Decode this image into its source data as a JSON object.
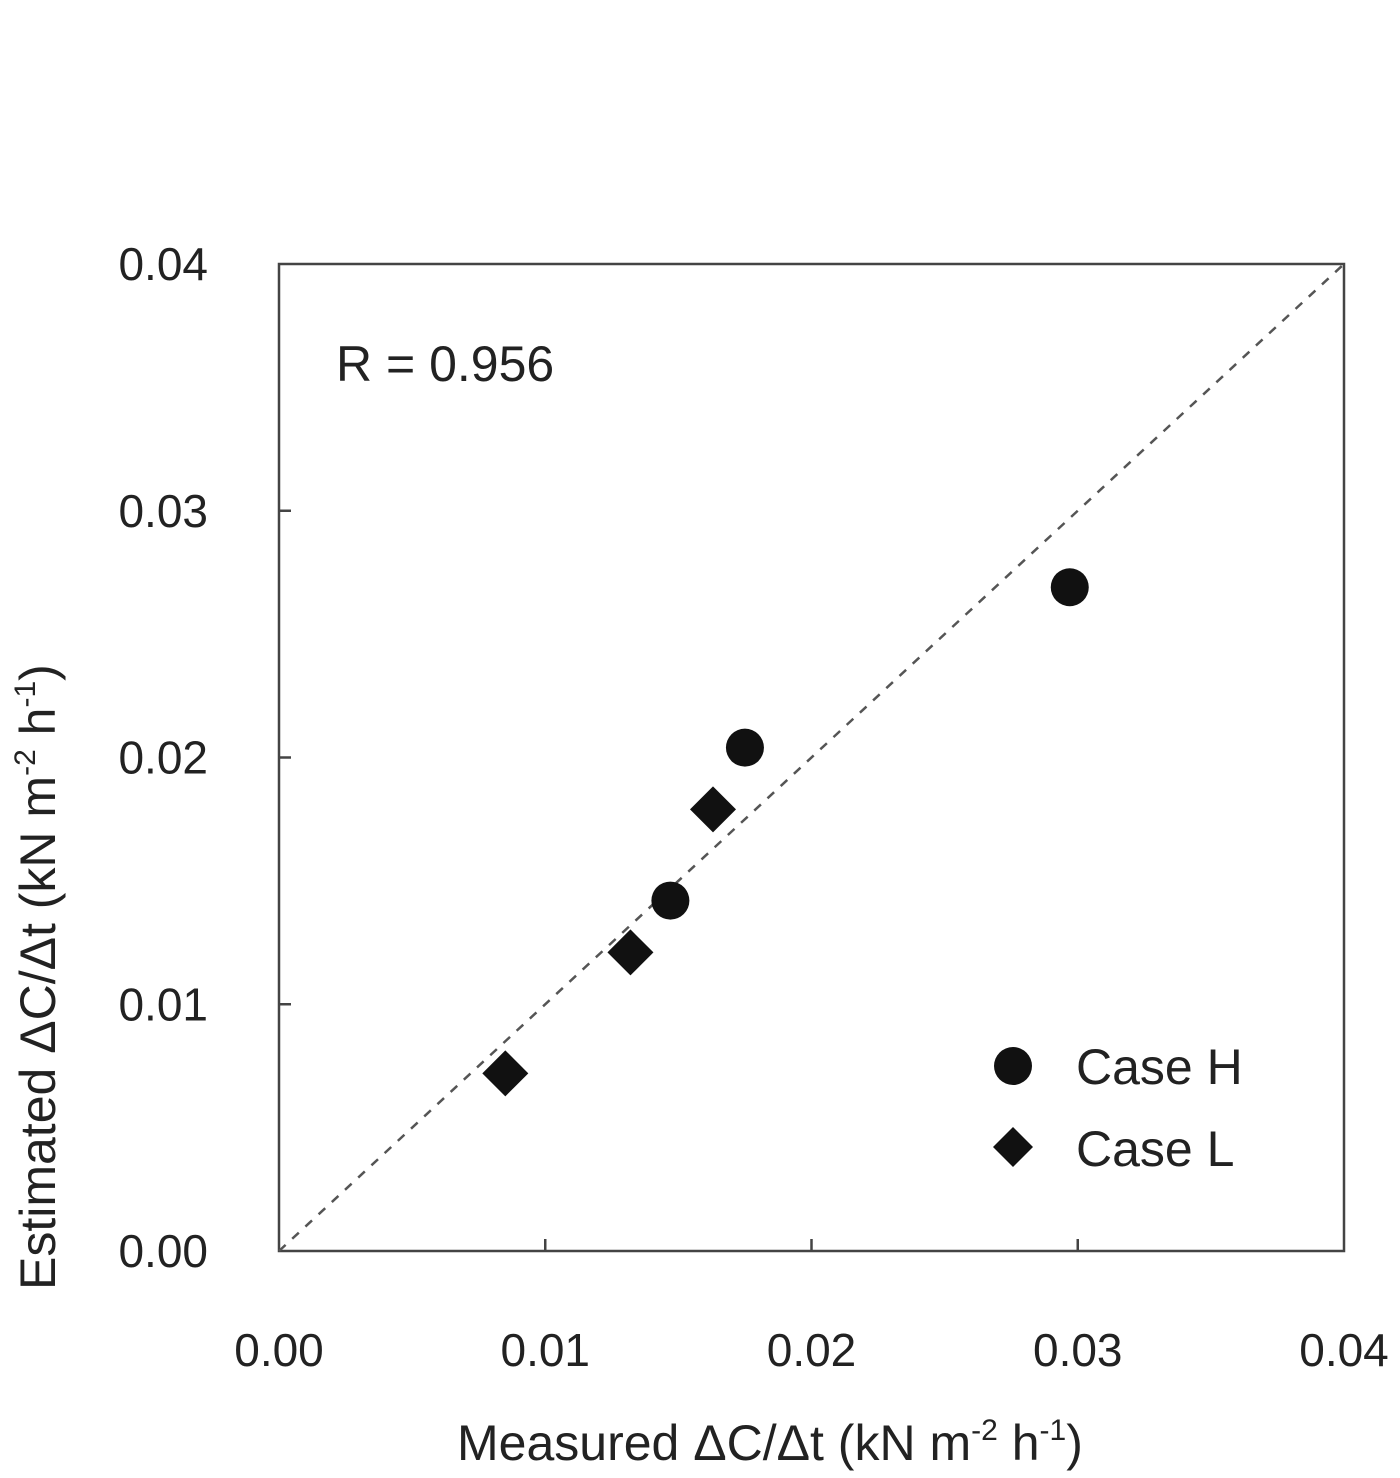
{
  "chart_data": {
    "type": "scatter",
    "xlabel": {
      "main": "Measured  ΔC/Δt  (kN m",
      "sup1": "-2",
      "mid": " h",
      "sup2": "-1",
      "end": ")"
    },
    "ylabel": {
      "main": "Estimated  ΔC/Δt  (kN m",
      "sup1": "-2",
      "mid": " h",
      "sup2": "-1",
      "end": ")"
    },
    "xlim": [
      0,
      0.04
    ],
    "ylim": [
      0,
      0.04
    ],
    "xticks": [
      "0.00",
      "0.01",
      "0.02",
      "0.03",
      "0.04"
    ],
    "yticks": [
      "0.00",
      "0.01",
      "0.02",
      "0.03",
      "0.04"
    ],
    "xtick_values": [
      0,
      0.01,
      0.02,
      0.03,
      0.04
    ],
    "ytick_values": [
      0,
      0.01,
      0.02,
      0.03,
      0.04
    ],
    "grid": false,
    "reference_line": {
      "style": "dashed",
      "from": [
        0,
        0
      ],
      "to": [
        0.04,
        0.04
      ]
    },
    "annotation": "R = 0.956",
    "legend_position": "bottom-right",
    "series": [
      {
        "name": "Case H",
        "marker": "circle",
        "color": "#111111",
        "points": [
          [
            0.0147,
            0.0142
          ],
          [
            0.0175,
            0.0204
          ],
          [
            0.0297,
            0.0269
          ]
        ]
      },
      {
        "name": "Case L",
        "marker": "diamond",
        "color": "#111111",
        "points": [
          [
            0.0085,
            0.0072
          ],
          [
            0.0132,
            0.0121
          ],
          [
            0.0163,
            0.0179
          ]
        ]
      }
    ]
  }
}
